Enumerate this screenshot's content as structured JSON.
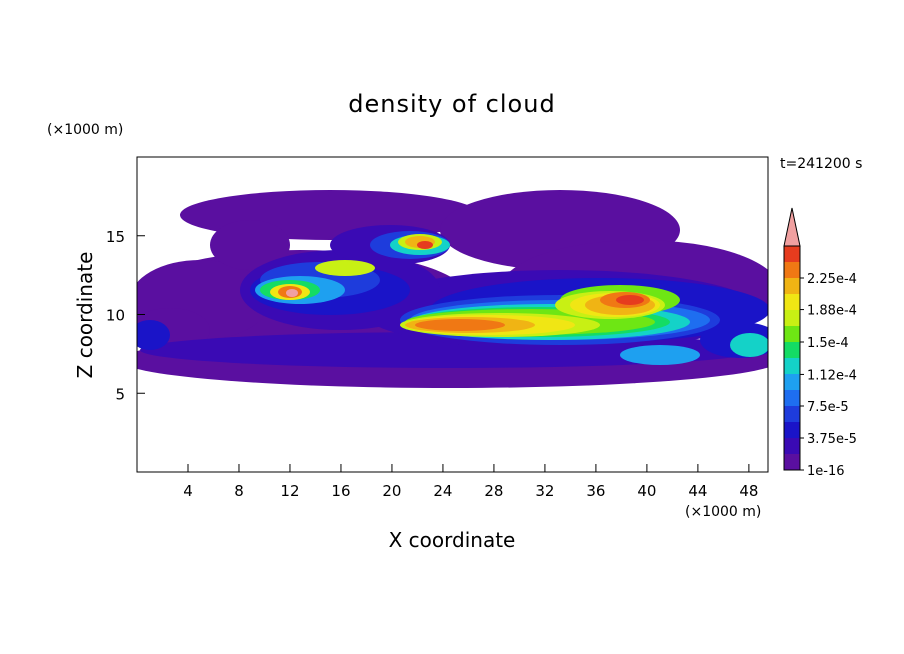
{
  "chart_data": {
    "type": "contour",
    "title": "density of cloud",
    "xlabel": "X coordinate",
    "ylabel": "Z coordinate",
    "x_unit_label": "(×1000 m)",
    "y_unit_label": "(×1000 m)",
    "annotation": "t=241200 s",
    "xlim": [
      0,
      49.5
    ],
    "xticks": [
      4,
      8,
      12,
      16,
      20,
      24,
      28,
      32,
      36,
      40,
      44,
      48
    ],
    "ylim": [
      0,
      20
    ],
    "yticks": [
      5,
      10,
      15
    ],
    "colorbar": {
      "lim": [
        1e-16,
        0.0002625
      ],
      "ticks": [
        1e-16,
        {
          "value": 3.75e-05,
          "label": "3.75e-5"
        },
        {
          "value": 7.5e-05,
          "label": "7.5e-5"
        },
        {
          "value": 0.000112,
          "label": "1.12e-4"
        },
        {
          "value": 0.00015,
          "label": "1.5e-4"
        },
        {
          "value": 0.000188,
          "label": "1.88e-4"
        },
        {
          "value": 0.000225,
          "label": "2.25e-4"
        }
      ],
      "colors": [
        "#5a0fa0",
        "#3a0ab4",
        "#1a14c8",
        "#1e3cdc",
        "#1e6ef0",
        "#1ea0f0",
        "#14d2c8",
        "#14dc64",
        "#6ee614",
        "#c8f014",
        "#f0e614",
        "#f0b414",
        "#f07814",
        "#e63c1e"
      ],
      "extend_color": "#f0a0a0"
    }
  }
}
